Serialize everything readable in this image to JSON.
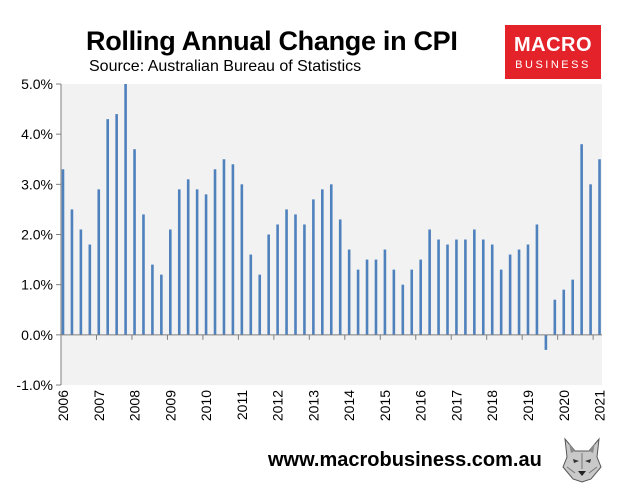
{
  "header": {
    "title": "Rolling Annual Change in CPI",
    "subtitle": "Source: Australian Bureau of Statistics"
  },
  "logo": {
    "line1": "MACRO",
    "line2": "BUSINESS"
  },
  "footer": {
    "url": "www.macrobusiness.com.au",
    "mascot_icon": "wolf-icon"
  },
  "colors": {
    "bar": "#4f81bd",
    "logo_bg": "#e3222a",
    "plot_bg": "#f2f2f2"
  },
  "chart_data": {
    "type": "bar",
    "title": "Rolling Annual Change in CPI",
    "xlabel": "",
    "ylabel": "",
    "ylim": [
      -1.0,
      5.0
    ],
    "y_ticks": [
      "5.0%",
      "4.0%",
      "3.0%",
      "2.0%",
      "1.0%",
      "0.0%",
      "-1.0%"
    ],
    "y_tick_values": [
      5,
      4,
      3,
      2,
      1,
      0,
      -1
    ],
    "x_tick_labels": [
      "2006",
      "2007",
      "2008",
      "2009",
      "2010",
      "2011",
      "2012",
      "2013",
      "2014",
      "2015",
      "2016",
      "2017",
      "2018",
      "2019",
      "2020",
      "2021"
    ],
    "x_tick_positions": [
      0,
      4,
      8,
      12,
      16,
      20,
      24,
      28,
      32,
      36,
      40,
      44,
      48,
      52,
      56,
      60
    ],
    "series": [
      {
        "name": "Rolling Annual Change in CPI (%)",
        "values": [
          3.3,
          2.5,
          2.1,
          1.8,
          2.9,
          4.3,
          4.4,
          5.0,
          3.7,
          2.4,
          1.4,
          1.2,
          2.1,
          2.9,
          3.1,
          2.9,
          2.8,
          3.3,
          3.5,
          3.4,
          3.0,
          1.6,
          1.2,
          2.0,
          2.2,
          2.5,
          2.4,
          2.2,
          2.7,
          2.9,
          3.0,
          2.3,
          1.7,
          1.3,
          1.5,
          1.5,
          1.7,
          1.3,
          1.0,
          1.3,
          1.5,
          2.1,
          1.9,
          1.8,
          1.9,
          1.9,
          2.1,
          1.9,
          1.8,
          1.3,
          1.6,
          1.7,
          1.8,
          2.2,
          -0.3,
          0.7,
          0.9,
          1.1,
          3.8,
          3.0,
          3.5
        ]
      }
    ],
    "grid": false
  }
}
